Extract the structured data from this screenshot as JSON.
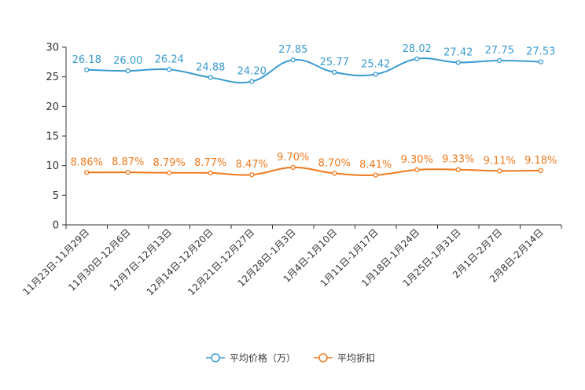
{
  "chart_data": {
    "type": "line",
    "title": "",
    "xlabel": "",
    "ylabel": "",
    "ylim": [
      0,
      30
    ],
    "yticks": [
      0,
      5,
      10,
      15,
      20,
      25,
      30
    ],
    "grid": false,
    "legend_position": "bottom-center",
    "categories": [
      "11月23日-11月29日",
      "11月30日-12月6日",
      "12月7日-12月13日",
      "12月14日-12月20日",
      "12月21日-12月27日",
      "12月28日-1月3日",
      "1月4日-1月10日",
      "1月11日-1月17日",
      "1月18日-1月24日",
      "1月25日-1月31日",
      "2月1日-2月7日",
      "2月8日-2月14日"
    ],
    "series": [
      {
        "name": "平均价格（万）",
        "color": "#3a9bd0",
        "values": [
          26.18,
          26.0,
          26.24,
          24.88,
          24.2,
          27.85,
          25.77,
          25.42,
          28.02,
          27.42,
          27.75,
          27.53
        ],
        "labels": [
          "26.18",
          "26.00",
          "26.24",
          "24.88",
          "24.20",
          "27.85",
          "25.77",
          "25.42",
          "28.02",
          "27.42",
          "27.75",
          "27.53"
        ]
      },
      {
        "name": "平均折扣",
        "color": "#f07a1e",
        "values": [
          8.86,
          8.87,
          8.79,
          8.77,
          8.47,
          9.7,
          8.7,
          8.41,
          9.3,
          9.33,
          9.11,
          9.18
        ],
        "labels": [
          "8.86%",
          "8.87%",
          "8.79%",
          "8.77%",
          "8.47%",
          "9.70%",
          "8.70%",
          "8.41%",
          "9.30%",
          "9.33%",
          "9.11%",
          "9.18%"
        ]
      }
    ]
  }
}
